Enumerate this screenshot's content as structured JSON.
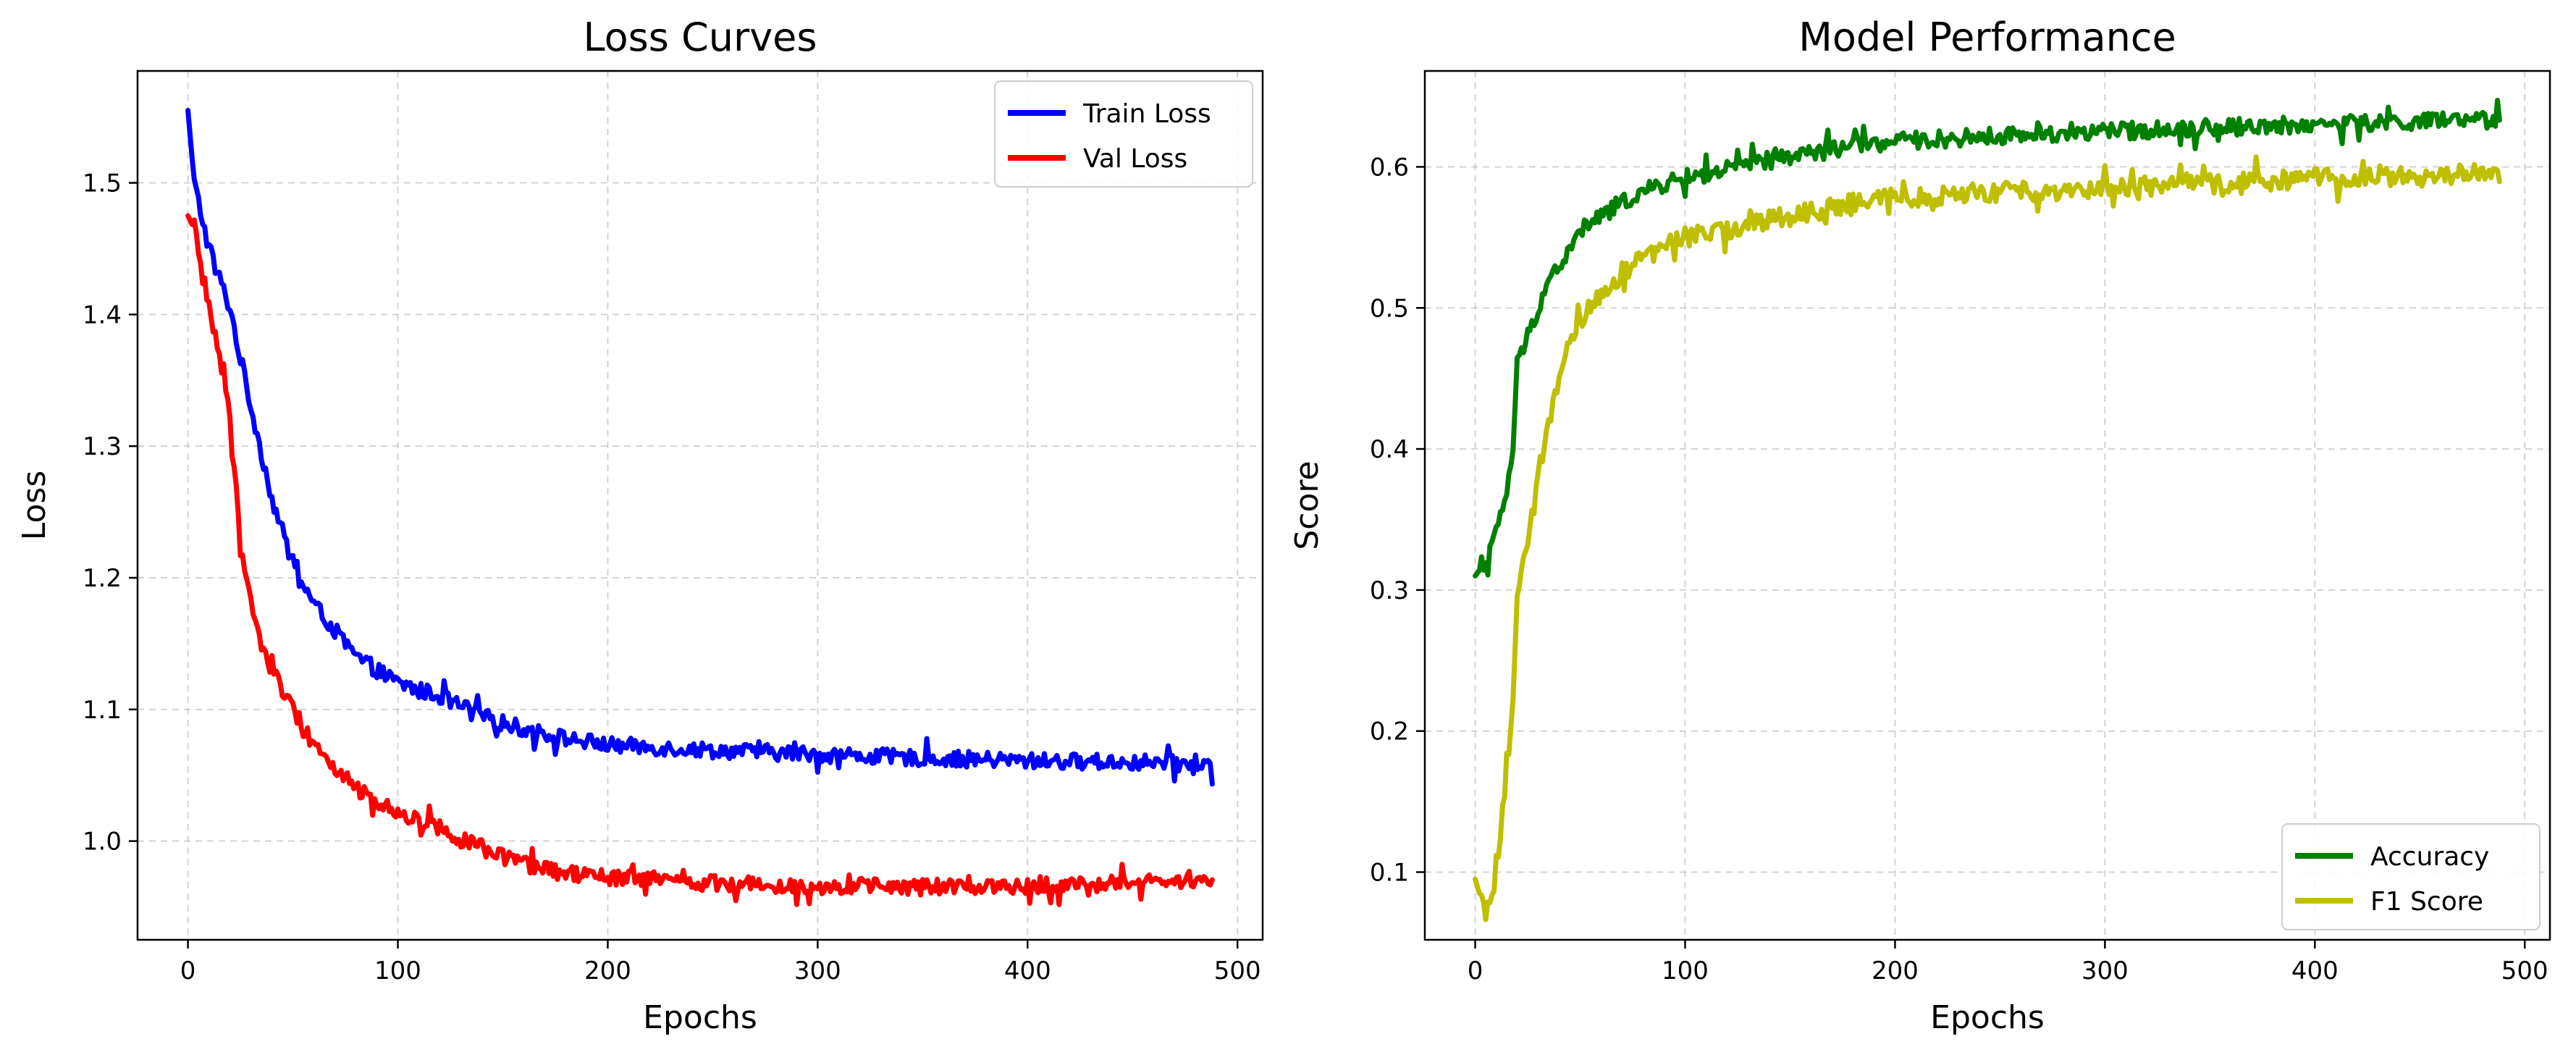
{
  "colors": {
    "train": "#0000ff",
    "val": "#ff0000",
    "accuracy": "#008000",
    "f1": "#bfbf00"
  },
  "chart_data": [
    {
      "id": "loss",
      "type": "line",
      "title": "Loss Curves",
      "xlabel": "Epochs",
      "ylabel": "Loss",
      "xlim": [
        -24,
        512
      ],
      "ylim": [
        0.925,
        1.585
      ],
      "xticks": [
        0,
        100,
        200,
        300,
        400,
        500
      ],
      "yticks": [
        1.0,
        1.1,
        1.2,
        1.3,
        1.4,
        1.5
      ],
      "ytick_decimals": 1,
      "grid": true,
      "legend_position": "top-right",
      "x_max": 488,
      "series": [
        {
          "name": "Train Loss",
          "color": "#0000ff",
          "points": [
            [
              0,
              1.555
            ],
            [
              3,
              1.5
            ],
            [
              10,
              1.45
            ],
            [
              20,
              1.405
            ],
            [
              30,
              1.33
            ],
            [
              40,
              1.26
            ],
            [
              50,
              1.21
            ],
            [
              60,
              1.18
            ],
            [
              70,
              1.16
            ],
            [
              80,
              1.14
            ],
            [
              90,
              1.13
            ],
            [
              100,
              1.12
            ],
            [
              120,
              1.11
            ],
            [
              140,
              1.095
            ],
            [
              160,
              1.085
            ],
            [
              180,
              1.078
            ],
            [
              200,
              1.073
            ],
            [
              250,
              1.069
            ],
            [
              300,
              1.066
            ],
            [
              350,
              1.063
            ],
            [
              400,
              1.061
            ],
            [
              450,
              1.06
            ],
            [
              488,
              1.058
            ]
          ],
          "noise": 0.006
        },
        {
          "name": "Val Loss",
          "color": "#ff0000",
          "points": [
            [
              0,
              1.475
            ],
            [
              3,
              1.465
            ],
            [
              8,
              1.42
            ],
            [
              15,
              1.37
            ],
            [
              20,
              1.32
            ],
            [
              25,
              1.23
            ],
            [
              30,
              1.18
            ],
            [
              35,
              1.15
            ],
            [
              40,
              1.13
            ],
            [
              45,
              1.115
            ],
            [
              50,
              1.1
            ],
            [
              60,
              1.075
            ],
            [
              70,
              1.055
            ],
            [
              80,
              1.04
            ],
            [
              90,
              1.03
            ],
            [
              100,
              1.022
            ],
            [
              120,
              1.01
            ],
            [
              140,
              0.995
            ],
            [
              160,
              0.982
            ],
            [
              180,
              0.975
            ],
            [
              200,
              0.972
            ],
            [
              250,
              0.968
            ],
            [
              300,
              0.966
            ],
            [
              350,
              0.965
            ],
            [
              400,
              0.966
            ],
            [
              450,
              0.968
            ],
            [
              488,
              0.97
            ]
          ],
          "noise": 0.006
        }
      ]
    },
    {
      "id": "perf",
      "type": "line",
      "title": "Model Performance",
      "xlabel": "Epochs",
      "ylabel": "Score",
      "xlim": [
        -24,
        512
      ],
      "ylim": [
        0.052,
        0.668
      ],
      "xticks": [
        0,
        100,
        200,
        300,
        400,
        500
      ],
      "yticks": [
        0.1,
        0.2,
        0.3,
        0.4,
        0.5,
        0.6
      ],
      "ytick_decimals": 1,
      "grid": true,
      "legend_position": "bottom-right",
      "x_max": 488,
      "series": [
        {
          "name": "Accuracy",
          "color": "#008000",
          "points": [
            [
              0,
              0.31
            ],
            [
              5,
              0.32
            ],
            [
              10,
              0.34
            ],
            [
              15,
              0.37
            ],
            [
              18,
              0.4
            ],
            [
              20,
              0.46
            ],
            [
              25,
              0.48
            ],
            [
              30,
              0.5
            ],
            [
              35,
              0.52
            ],
            [
              40,
              0.53
            ],
            [
              45,
              0.54
            ],
            [
              50,
              0.555
            ],
            [
              60,
              0.565
            ],
            [
              70,
              0.575
            ],
            [
              80,
              0.582
            ],
            [
              90,
              0.588
            ],
            [
              100,
              0.592
            ],
            [
              120,
              0.598
            ],
            [
              140,
              0.605
            ],
            [
              160,
              0.61
            ],
            [
              180,
              0.615
            ],
            [
              200,
              0.618
            ],
            [
              250,
              0.622
            ],
            [
              300,
              0.625
            ],
            [
              350,
              0.628
            ],
            [
              400,
              0.63
            ],
            [
              450,
              0.632
            ],
            [
              488,
              0.633
            ]
          ],
          "noise": 0.006
        },
        {
          "name": "F1 Score",
          "color": "#bfbf00",
          "points": [
            [
              0,
              0.095
            ],
            [
              3,
              0.08
            ],
            [
              8,
              0.08
            ],
            [
              12,
              0.13
            ],
            [
              15,
              0.17
            ],
            [
              18,
              0.22
            ],
            [
              20,
              0.3
            ],
            [
              25,
              0.33
            ],
            [
              30,
              0.38
            ],
            [
              35,
              0.42
            ],
            [
              40,
              0.45
            ],
            [
              45,
              0.47
            ],
            [
              50,
              0.49
            ],
            [
              60,
              0.51
            ],
            [
              70,
              0.525
            ],
            [
              80,
              0.535
            ],
            [
              90,
              0.545
            ],
            [
              100,
              0.55
            ],
            [
              120,
              0.555
            ],
            [
              140,
              0.562
            ],
            [
              160,
              0.568
            ],
            [
              180,
              0.574
            ],
            [
              200,
              0.578
            ],
            [
              250,
              0.582
            ],
            [
              300,
              0.585
            ],
            [
              350,
              0.588
            ],
            [
              400,
              0.592
            ],
            [
              450,
              0.594
            ],
            [
              488,
              0.596
            ]
          ],
          "noise": 0.007
        }
      ]
    }
  ]
}
